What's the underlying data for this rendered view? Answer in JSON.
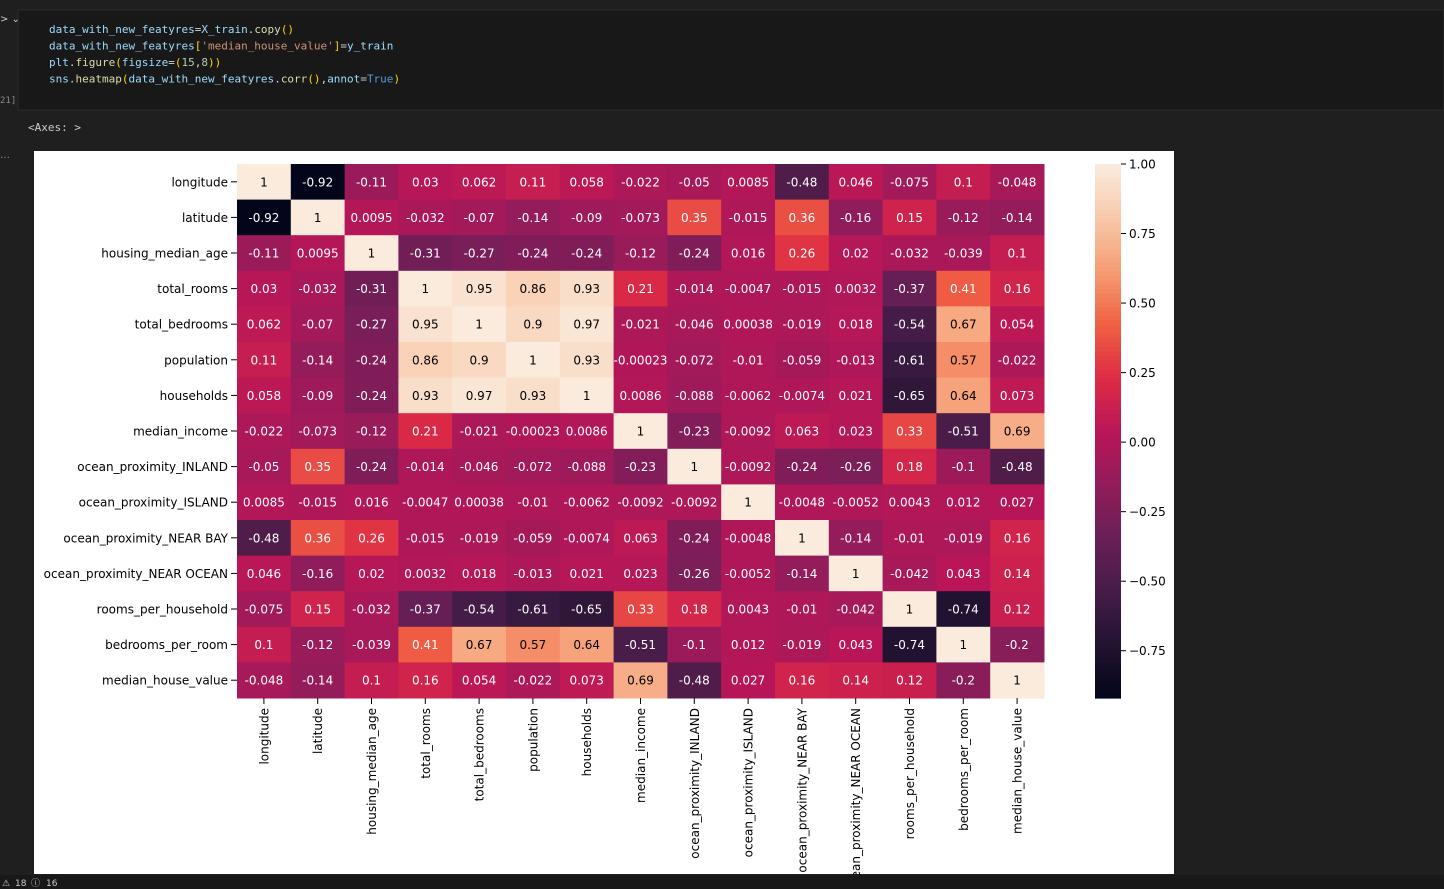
{
  "cell": {
    "execution_count": "21]",
    "code_lines": [
      [
        [
          "data_with_new_featyres",
          "var"
        ],
        [
          "=",
          "op"
        ],
        [
          "X_train",
          "var"
        ],
        [
          ".",
          "op"
        ],
        [
          "copy",
          "fn"
        ],
        [
          "()",
          "br"
        ]
      ],
      [
        [
          "data_with_new_featyres",
          "var"
        ],
        [
          "[",
          "br"
        ],
        [
          "'median_house_value'",
          "str"
        ],
        [
          "]",
          "br"
        ],
        [
          "=",
          "op"
        ],
        [
          "y_train",
          "var"
        ]
      ],
      [
        [
          "plt",
          "var"
        ],
        [
          ".",
          "op"
        ],
        [
          "figure",
          "fn"
        ],
        [
          "(",
          "br"
        ],
        [
          "figsize",
          "var"
        ],
        [
          "=",
          "op"
        ],
        [
          "(",
          "br"
        ],
        [
          "15",
          "num"
        ],
        [
          ",",
          "op"
        ],
        [
          "8",
          "num"
        ],
        [
          "))",
          "br"
        ]
      ],
      [
        [
          "sns",
          "var"
        ],
        [
          ".",
          "op"
        ],
        [
          "heatmap",
          "fn"
        ],
        [
          "(",
          "br"
        ],
        [
          "data_with_new_featyres",
          "var"
        ],
        [
          ".",
          "op"
        ],
        [
          "corr",
          "fn"
        ],
        [
          "()",
          "br"
        ],
        [
          ",",
          "op"
        ],
        [
          "annot",
          "var"
        ],
        [
          "=",
          "op"
        ],
        [
          "True",
          "kw"
        ],
        [
          ")",
          "br"
        ]
      ]
    ],
    "output_text": "<Axes: >"
  },
  "status": {
    "warnings": "18",
    "infos": "16"
  },
  "chart_data": {
    "type": "heatmap",
    "colormap": "rocket",
    "categories": [
      "longitude",
      "latitude",
      "housing_median_age",
      "total_rooms",
      "total_bedrooms",
      "population",
      "households",
      "median_income",
      "ocean_proximity_INLAND",
      "ocean_proximity_ISLAND",
      "ocean_proximity_NEAR BAY",
      "ocean_proximity_NEAR OCEAN",
      "rooms_per_household",
      "bedrooms_per_room",
      "median_house_value"
    ],
    "values": [
      [
        1,
        -0.92,
        -0.11,
        0.03,
        0.062,
        0.11,
        0.058,
        -0.022,
        -0.05,
        0.0085,
        -0.48,
        0.046,
        -0.075,
        0.1,
        -0.048
      ],
      [
        -0.92,
        1,
        0.0095,
        -0.032,
        -0.07,
        -0.14,
        -0.09,
        -0.073,
        0.35,
        -0.015,
        0.36,
        -0.16,
        0.15,
        -0.12,
        -0.14
      ],
      [
        -0.11,
        0.0095,
        1,
        -0.31,
        -0.27,
        -0.24,
        -0.24,
        -0.12,
        -0.24,
        0.016,
        0.26,
        0.02,
        -0.032,
        -0.039,
        0.1
      ],
      [
        0.03,
        -0.032,
        -0.31,
        1,
        0.95,
        0.86,
        0.93,
        0.21,
        -0.014,
        -0.0047,
        -0.015,
        0.0032,
        -0.37,
        0.41,
        0.16
      ],
      [
        0.062,
        -0.07,
        -0.27,
        0.95,
        1,
        0.9,
        0.97,
        -0.021,
        -0.046,
        0.00038,
        -0.019,
        0.018,
        -0.54,
        0.67,
        0.054
      ],
      [
        0.11,
        -0.14,
        -0.24,
        0.86,
        0.9,
        1,
        0.93,
        -0.00023,
        -0.072,
        -0.01,
        -0.059,
        -0.013,
        -0.61,
        0.57,
        -0.022
      ],
      [
        0.058,
        -0.09,
        -0.24,
        0.93,
        0.97,
        0.93,
        1,
        0.0086,
        -0.088,
        -0.0062,
        -0.0074,
        0.021,
        -0.65,
        0.64,
        0.073
      ],
      [
        -0.022,
        -0.073,
        -0.12,
        0.21,
        -0.021,
        -0.00023,
        0.0086,
        1,
        -0.23,
        -0.0092,
        0.063,
        0.023,
        0.33,
        -0.51,
        0.69
      ],
      [
        -0.05,
        0.35,
        -0.24,
        -0.014,
        -0.046,
        -0.072,
        -0.088,
        -0.23,
        1,
        -0.0092,
        -0.24,
        -0.26,
        0.18,
        -0.1,
        -0.48
      ],
      [
        0.0085,
        -0.015,
        0.016,
        -0.0047,
        0.00038,
        -0.01,
        -0.0062,
        -0.0092,
        -0.0092,
        1,
        -0.0048,
        -0.0052,
        0.0043,
        0.012,
        0.027
      ],
      [
        -0.48,
        0.36,
        0.26,
        -0.015,
        -0.019,
        -0.059,
        -0.0074,
        0.063,
        -0.24,
        -0.0048,
        1,
        -0.14,
        -0.01,
        -0.019,
        0.16
      ],
      [
        0.046,
        -0.16,
        0.02,
        0.0032,
        0.018,
        -0.013,
        0.021,
        0.023,
        -0.26,
        -0.0052,
        -0.14,
        1,
        -0.042,
        0.043,
        0.14
      ],
      [
        -0.075,
        0.15,
        -0.032,
        -0.37,
        -0.54,
        -0.61,
        -0.65,
        0.33,
        0.18,
        0.0043,
        -0.01,
        -0.042,
        1,
        -0.74,
        0.12
      ],
      [
        0.1,
        -0.12,
        -0.039,
        0.41,
        0.67,
        0.57,
        0.64,
        -0.51,
        -0.1,
        0.012,
        -0.019,
        0.043,
        -0.74,
        1,
        -0.2
      ],
      [
        -0.048,
        -0.14,
        0.1,
        0.16,
        0.054,
        -0.022,
        0.073,
        0.69,
        -0.48,
        0.027,
        0.16,
        0.14,
        0.12,
        -0.2,
        1
      ]
    ],
    "clim": [
      -0.92,
      1
    ],
    "cticks": [
      {
        "value": 1,
        "label": "1.00"
      },
      {
        "value": 0.75,
        "label": "0.75"
      },
      {
        "value": 0.5,
        "label": "0.50"
      },
      {
        "value": 0.25,
        "label": "0.25"
      },
      {
        "value": 0,
        "label": "0.00"
      },
      {
        "value": -0.25,
        "label": "−0.25"
      },
      {
        "value": -0.5,
        "label": "−0.50"
      },
      {
        "value": -0.75,
        "label": "−0.75"
      }
    ]
  }
}
